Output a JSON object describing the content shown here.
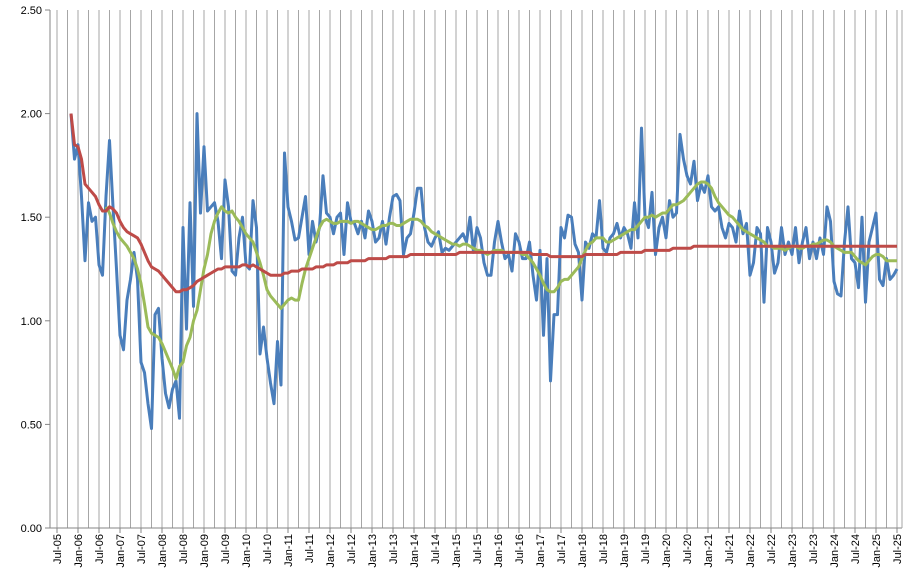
{
  "chart_data": {
    "type": "line",
    "categories": [
      "Jul-05",
      null,
      null,
      null,
      null,
      null,
      "Jan-06",
      null,
      null,
      null,
      null,
      null,
      "Jul-06",
      null,
      null,
      null,
      null,
      null,
      "Jan-07",
      null,
      null,
      null,
      null,
      null,
      "Jul-07",
      null,
      null,
      null,
      null,
      null,
      "Jan-08",
      null,
      null,
      null,
      null,
      null,
      "Jul-08",
      null,
      null,
      null,
      null,
      null,
      "Jan-09",
      null,
      null,
      null,
      null,
      null,
      "Jul-09",
      null,
      null,
      null,
      null,
      null,
      "Jan-10",
      null,
      null,
      null,
      null,
      null,
      "Jul-10",
      null,
      null,
      null,
      null,
      null,
      "Jan-11",
      null,
      null,
      null,
      null,
      null,
      "Jul-11",
      null,
      null,
      null,
      null,
      null,
      "Jan-12",
      null,
      null,
      null,
      null,
      null,
      "Jul-12",
      null,
      null,
      null,
      null,
      null,
      "Jan-13",
      null,
      null,
      null,
      null,
      null,
      "Jul-13",
      null,
      null,
      null,
      null,
      null,
      "Jan-14",
      null,
      null,
      null,
      null,
      null,
      "Jul-14",
      null,
      null,
      null,
      null,
      null,
      "Jan-15",
      null,
      null,
      null,
      null,
      null,
      "Jul-15",
      null,
      null,
      null,
      null,
      null,
      "Jan-16",
      null,
      null,
      null,
      null,
      null,
      "Jul-16",
      null,
      null,
      null,
      null,
      null,
      "Jan-17",
      null,
      null,
      null,
      null,
      null,
      "Jul-17",
      null,
      null,
      null,
      null,
      null,
      "Jan-18",
      null,
      null,
      null,
      null,
      null,
      "Jul-18",
      null,
      null,
      null,
      null,
      null,
      "Jan-19",
      null,
      null,
      null,
      null,
      null,
      "Jul-19",
      null,
      null,
      null,
      null,
      null,
      "Jan-20",
      null,
      null,
      null,
      null,
      null,
      "Jul-20",
      null,
      null,
      null,
      null,
      null,
      "Jan-21",
      null,
      null,
      null,
      null,
      null,
      "Jul-21",
      null,
      null,
      null,
      null,
      null,
      "Jan-22",
      null,
      null,
      null,
      null,
      null,
      "Jul-22",
      null,
      null,
      null,
      null,
      null,
      "Jan-23",
      null,
      null,
      null,
      null,
      null,
      "Jul-23",
      null,
      null,
      null,
      null,
      null,
      "Jan-24",
      null,
      null,
      null,
      null,
      null,
      "Jul-24",
      null,
      null,
      null,
      null,
      null,
      "Jan-25",
      null,
      null,
      null,
      null,
      null,
      "Jul-25"
    ],
    "ylim": [
      0,
      2.5
    ],
    "yticks": [
      {
        "value": 0,
        "label": "0.00"
      },
      {
        "value": 0.5,
        "label": "0.50"
      },
      {
        "value": 1,
        "label": "1.00"
      },
      {
        "value": 1.5,
        "label": "1.50"
      },
      {
        "value": 2,
        "label": "2.00"
      },
      {
        "value": 2.5,
        "label": "2.50"
      }
    ],
    "series": [
      {
        "color": "#4a7ebb",
        "values": [
          null,
          null,
          null,
          null,
          2.0,
          1.78,
          1.85,
          1.6,
          1.29,
          1.57,
          1.48,
          1.5,
          1.27,
          1.22,
          1.6,
          1.87,
          1.55,
          1.25,
          0.93,
          0.86,
          1.1,
          1.2,
          1.33,
          1.2,
          0.8,
          0.75,
          0.6,
          0.48,
          1.03,
          1.06,
          0.82,
          0.65,
          0.58,
          0.67,
          0.71,
          0.53,
          1.45,
          0.96,
          1.57,
          1.07,
          2.0,
          1.52,
          1.84,
          1.53,
          1.55,
          1.57,
          1.48,
          1.3,
          1.68,
          1.55,
          1.24,
          1.22,
          1.4,
          1.5,
          1.27,
          1.25,
          1.58,
          1.45,
          0.84,
          0.97,
          0.82,
          0.7,
          0.6,
          0.9,
          0.69,
          1.81,
          1.55,
          1.48,
          1.39,
          1.4,
          1.5,
          1.6,
          1.32,
          1.48,
          1.38,
          1.45,
          1.7,
          1.52,
          1.5,
          1.42,
          1.5,
          1.52,
          1.32,
          1.57,
          1.48,
          1.47,
          1.42,
          1.48,
          1.4,
          1.53,
          1.48,
          1.38,
          1.4,
          1.48,
          1.37,
          1.5,
          1.6,
          1.61,
          1.58,
          1.32,
          1.4,
          1.42,
          1.52,
          1.64,
          1.64,
          1.45,
          1.38,
          1.36,
          1.4,
          1.43,
          1.33,
          1.35,
          1.34,
          1.36,
          1.38,
          1.4,
          1.42,
          1.38,
          1.5,
          1.33,
          1.45,
          1.4,
          1.28,
          1.22,
          1.22,
          1.38,
          1.48,
          1.38,
          1.3,
          1.32,
          1.24,
          1.42,
          1.38,
          1.3,
          1.3,
          1.38,
          1.22,
          1.1,
          1.34,
          0.93,
          1.3,
          0.71,
          1.03,
          1.03,
          1.45,
          1.4,
          1.51,
          1.5,
          1.37,
          1.33,
          1.1,
          1.38,
          1.35,
          1.42,
          1.4,
          1.58,
          1.35,
          1.33,
          1.4,
          1.42,
          1.47,
          1.4,
          1.45,
          1.42,
          1.35,
          1.57,
          1.4,
          1.93,
          1.5,
          1.45,
          1.62,
          1.32,
          1.45,
          1.5,
          1.4,
          1.58,
          1.5,
          1.52,
          1.9,
          1.78,
          1.7,
          1.66,
          1.77,
          1.58,
          1.66,
          1.62,
          1.7,
          1.55,
          1.53,
          1.55,
          1.45,
          1.4,
          1.47,
          1.45,
          1.38,
          1.53,
          1.42,
          1.47,
          1.22,
          1.28,
          1.45,
          1.42,
          1.09,
          1.45,
          1.38,
          1.23,
          1.28,
          1.45,
          1.32,
          1.38,
          1.32,
          1.45,
          1.28,
          1.38,
          1.45,
          1.3,
          1.38,
          1.3,
          1.4,
          1.32,
          1.55,
          1.48,
          1.19,
          1.13,
          1.12,
          1.38,
          1.55,
          1.3,
          1.28,
          1.16,
          1.5,
          1.09,
          1.38,
          1.45,
          1.52,
          1.2,
          1.17,
          1.3,
          1.2,
          1.22,
          1.25
        ]
      },
      {
        "color": "#9bbb59",
        "values": [
          null,
          null,
          null,
          null,
          null,
          null,
          null,
          null,
          null,
          null,
          null,
          null,
          null,
          null,
          1.55,
          1.52,
          1.47,
          1.43,
          1.4,
          1.38,
          1.36,
          1.33,
          1.3,
          1.25,
          1.18,
          1.08,
          0.97,
          0.94,
          0.93,
          0.92,
          0.89,
          0.85,
          0.81,
          0.77,
          0.72,
          0.78,
          0.8,
          0.88,
          0.92,
          1.0,
          1.05,
          1.15,
          1.25,
          1.32,
          1.42,
          1.48,
          1.52,
          1.55,
          1.53,
          1.52,
          1.53,
          1.5,
          1.48,
          1.45,
          1.42,
          1.4,
          1.38,
          1.33,
          1.28,
          1.22,
          1.15,
          1.12,
          1.1,
          1.08,
          1.06,
          1.08,
          1.1,
          1.11,
          1.1,
          1.1,
          1.18,
          1.25,
          1.3,
          1.35,
          1.4,
          1.45,
          1.48,
          1.49,
          1.48,
          1.47,
          1.47,
          1.48,
          1.48,
          1.48,
          1.47,
          1.48,
          1.48,
          1.47,
          1.46,
          1.45,
          1.44,
          1.44,
          1.45,
          1.46,
          1.46,
          1.47,
          1.47,
          1.46,
          1.46,
          1.47,
          1.48,
          1.49,
          1.49,
          1.49,
          1.48,
          1.46,
          1.45,
          1.43,
          1.42,
          1.41,
          1.4,
          1.39,
          1.38,
          1.37,
          1.37,
          1.36,
          1.37,
          1.37,
          1.36,
          1.35,
          1.34,
          1.34,
          1.33,
          1.32,
          1.33,
          1.34,
          1.34,
          1.34,
          1.33,
          1.33,
          1.33,
          1.33,
          1.33,
          1.32,
          1.32,
          1.3,
          1.28,
          1.25,
          1.22,
          1.18,
          1.15,
          1.14,
          1.14,
          1.16,
          1.19,
          1.2,
          1.2,
          1.22,
          1.24,
          1.26,
          1.3,
          1.34,
          1.37,
          1.38,
          1.4,
          1.4,
          1.4,
          1.38,
          1.38,
          1.39,
          1.4,
          1.41,
          1.42,
          1.43,
          1.44,
          1.44,
          1.46,
          1.48,
          1.5,
          1.5,
          1.51,
          1.5,
          1.51,
          1.52,
          1.52,
          1.54,
          1.56,
          1.56,
          1.57,
          1.58,
          1.6,
          1.62,
          1.64,
          1.66,
          1.67,
          1.67,
          1.66,
          1.64,
          1.6,
          1.57,
          1.55,
          1.53,
          1.51,
          1.5,
          1.48,
          1.46,
          1.44,
          1.43,
          1.42,
          1.41,
          1.4,
          1.39,
          1.38,
          1.36,
          1.36,
          1.35,
          1.35,
          1.35,
          1.34,
          1.35,
          1.36,
          1.36,
          1.35,
          1.35,
          1.36,
          1.36,
          1.37,
          1.37,
          1.38,
          1.39,
          1.39,
          1.38,
          1.36,
          1.35,
          1.34,
          1.33,
          1.33,
          1.33,
          1.31,
          1.29,
          1.28,
          1.27,
          1.29,
          1.31,
          1.32,
          1.32,
          1.31,
          1.29,
          1.29,
          1.29,
          1.29
        ]
      },
      {
        "color": "#be4b48",
        "values": [
          null,
          null,
          null,
          null,
          2.0,
          1.85,
          1.84,
          1.78,
          1.66,
          1.64,
          1.62,
          1.6,
          1.56,
          1.53,
          1.53,
          1.55,
          1.54,
          1.52,
          1.48,
          1.45,
          1.43,
          1.42,
          1.41,
          1.4,
          1.37,
          1.33,
          1.29,
          1.26,
          1.25,
          1.24,
          1.22,
          1.2,
          1.18,
          1.16,
          1.14,
          1.14,
          1.15,
          1.15,
          1.16,
          1.17,
          1.19,
          1.2,
          1.21,
          1.22,
          1.23,
          1.24,
          1.25,
          1.25,
          1.26,
          1.26,
          1.26,
          1.26,
          1.26,
          1.27,
          1.27,
          1.26,
          1.27,
          1.26,
          1.25,
          1.24,
          1.23,
          1.22,
          1.22,
          1.22,
          1.22,
          1.23,
          1.23,
          1.24,
          1.24,
          1.24,
          1.25,
          1.25,
          1.25,
          1.25,
          1.26,
          1.26,
          1.26,
          1.27,
          1.27,
          1.27,
          1.28,
          1.28,
          1.28,
          1.28,
          1.29,
          1.29,
          1.29,
          1.29,
          1.29,
          1.3,
          1.3,
          1.3,
          1.3,
          1.3,
          1.3,
          1.31,
          1.31,
          1.31,
          1.31,
          1.31,
          1.31,
          1.32,
          1.32,
          1.32,
          1.32,
          1.32,
          1.32,
          1.32,
          1.32,
          1.32,
          1.32,
          1.32,
          1.32,
          1.32,
          1.32,
          1.33,
          1.33,
          1.33,
          1.33,
          1.33,
          1.33,
          1.33,
          1.33,
          1.33,
          1.33,
          1.33,
          1.33,
          1.33,
          1.33,
          1.33,
          1.33,
          1.33,
          1.33,
          1.33,
          1.33,
          1.33,
          1.32,
          1.32,
          1.32,
          1.32,
          1.32,
          1.31,
          1.31,
          1.31,
          1.31,
          1.31,
          1.31,
          1.31,
          1.31,
          1.31,
          1.31,
          1.32,
          1.32,
          1.32,
          1.32,
          1.32,
          1.32,
          1.32,
          1.32,
          1.32,
          1.32,
          1.33,
          1.33,
          1.33,
          1.33,
          1.33,
          1.33,
          1.33,
          1.34,
          1.34,
          1.34,
          1.34,
          1.34,
          1.34,
          1.34,
          1.34,
          1.35,
          1.35,
          1.35,
          1.35,
          1.35,
          1.35,
          1.36,
          1.36,
          1.36,
          1.36,
          1.36,
          1.36,
          1.36,
          1.36,
          1.36,
          1.36,
          1.36,
          1.36,
          1.36,
          1.36,
          1.36,
          1.36,
          1.36,
          1.36,
          1.36,
          1.36,
          1.36,
          1.36,
          1.36,
          1.36,
          1.36,
          1.36,
          1.36,
          1.36,
          1.36,
          1.36,
          1.36,
          1.36,
          1.36,
          1.36,
          1.36,
          1.36,
          1.36,
          1.36,
          1.36,
          1.36,
          1.36,
          1.36,
          1.36,
          1.36,
          1.36,
          1.36,
          1.36,
          1.36,
          1.36,
          1.36,
          1.36,
          1.36,
          1.36,
          1.36,
          1.36,
          1.36,
          1.36,
          1.36,
          1.36
        ]
      }
    ]
  }
}
